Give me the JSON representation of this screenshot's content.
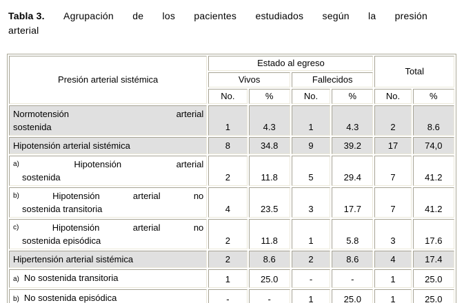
{
  "title": {
    "prefix_bold": "Tabla 3.",
    "line1_rest": "Agrupación de los pacientes estudiados según la presión",
    "line2": "arterial"
  },
  "table": {
    "header": {
      "col_label": "Presión arterial sistémica",
      "group": "Estado al egreso",
      "subgroups": [
        "Vivos",
        "Fallecidos"
      ],
      "total": "Total",
      "no_label": "No.",
      "pct_label": "%"
    },
    "rows": [
      {
        "prefix": "",
        "label_lines": [
          "Normotensión arterial",
          "sostenida"
        ],
        "highlight": true,
        "values": [
          "1",
          "4.3",
          "1",
          "4.3",
          "2",
          "8.6"
        ]
      },
      {
        "prefix": "",
        "label_lines": [
          "Hipotensión arterial sistémica"
        ],
        "highlight": true,
        "values": [
          "8",
          "34.8",
          "9",
          "39.2",
          "17",
          "74,0"
        ]
      },
      {
        "prefix": "a)",
        "label_lines": [
          "Hipotensión arterial",
          "sostenida"
        ],
        "highlight": false,
        "values": [
          "2",
          "11.8",
          "5",
          "29.4",
          "7",
          "41.2"
        ]
      },
      {
        "prefix": "b)",
        "label_lines": [
          "Hipotensión arterial no",
          "sostenida transitoria"
        ],
        "highlight": false,
        "values": [
          "4",
          "23.5",
          "3",
          "17.7",
          "7",
          "41.2"
        ]
      },
      {
        "prefix": "c)",
        "label_lines": [
          "Hipotensión arterial no",
          "sostenida episódica"
        ],
        "highlight": false,
        "values": [
          "2",
          "11.8",
          "1",
          "5.8",
          "3",
          "17.6"
        ]
      },
      {
        "prefix": "",
        "label_lines": [
          "Hipertensión arterial sistémica"
        ],
        "highlight": true,
        "values": [
          "2",
          "8.6",
          "2",
          "8.6",
          "4",
          "17.4"
        ]
      },
      {
        "prefix": "a)",
        "label_lines": [
          "No sostenida transitoria"
        ],
        "highlight": false,
        "values": [
          "1",
          "25.0",
          "-",
          "-",
          "1",
          "25.0"
        ]
      },
      {
        "prefix": "b)",
        "label_lines": [
          "No sostenida episódica"
        ],
        "highlight": false,
        "values": [
          "-",
          "-",
          "1",
          "25.0",
          "1",
          "25.0"
        ]
      }
    ],
    "colors": {
      "row_highlight": "#e0e0e0",
      "cell_border_dark": "#a6a394",
      "cell_border_light": "#ebe8d9",
      "outer_border": "#aaa796"
    }
  }
}
